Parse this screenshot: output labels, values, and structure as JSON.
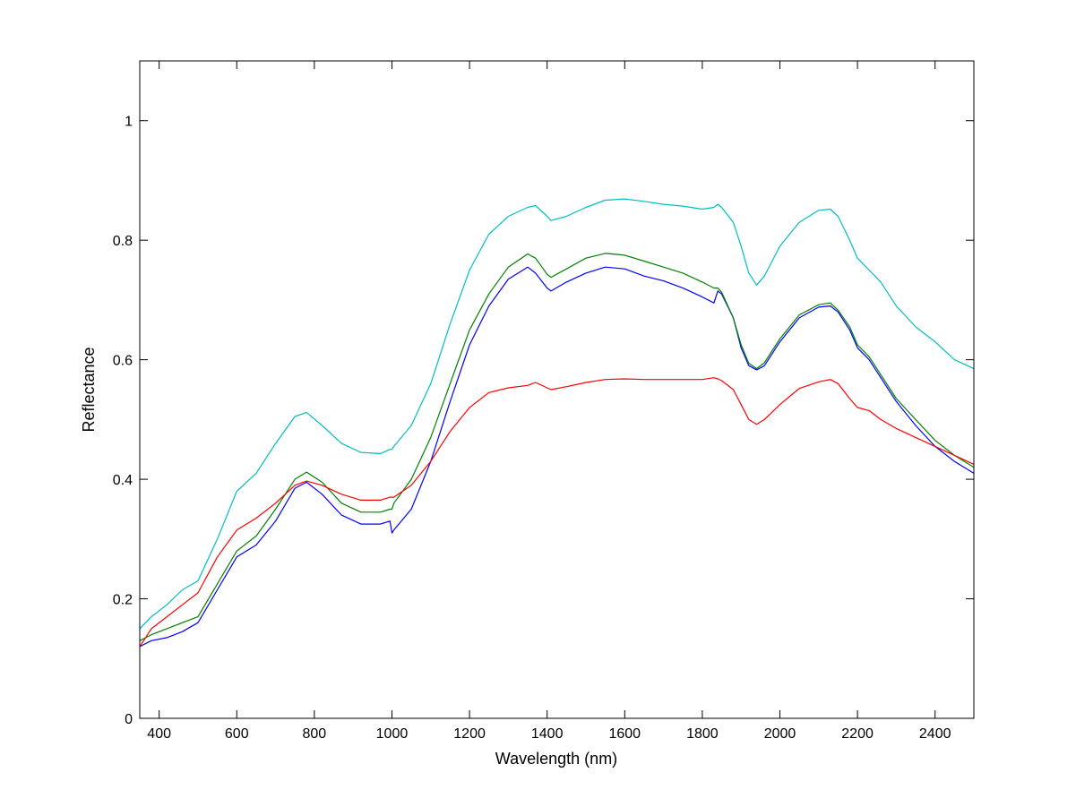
{
  "chart_data": {
    "type": "line",
    "title": "",
    "xlabel": "Wavelength (nm)",
    "ylabel": "Reflectance",
    "xlim": [
      350,
      2500
    ],
    "ylim": [
      0,
      1.1
    ],
    "xticks": [
      400,
      600,
      800,
      1000,
      1200,
      1400,
      1600,
      1800,
      2000,
      2200,
      2400
    ],
    "yticks": [
      0,
      0.2,
      0.4,
      0.6,
      0.8,
      1
    ],
    "ytick_labels": [
      "0",
      "0.2",
      "0.4",
      "0.6",
      "0.8",
      "1"
    ],
    "grid": false,
    "legend": "none",
    "x": [
      350,
      380,
      420,
      460,
      500,
      550,
      600,
      650,
      700,
      750,
      780,
      820,
      870,
      920,
      970,
      995,
      1000,
      1005,
      1050,
      1100,
      1150,
      1200,
      1250,
      1300,
      1350,
      1370,
      1400,
      1410,
      1450,
      1500,
      1550,
      1600,
      1650,
      1700,
      1750,
      1800,
      1830,
      1840,
      1850,
      1880,
      1900,
      1920,
      1940,
      1960,
      2000,
      2050,
      2100,
      2130,
      2150,
      2180,
      2200,
      2230,
      2260,
      2300,
      2350,
      2400,
      2450,
      2500
    ],
    "series": [
      {
        "color": "#0000ff",
        "values": [
          0.12,
          0.13,
          0.135,
          0.145,
          0.16,
          0.215,
          0.27,
          0.29,
          0.33,
          0.385,
          0.395,
          0.375,
          0.34,
          0.325,
          0.325,
          0.33,
          0.31,
          0.315,
          0.35,
          0.43,
          0.53,
          0.625,
          0.69,
          0.735,
          0.755,
          0.745,
          0.72,
          0.715,
          0.73,
          0.745,
          0.755,
          0.752,
          0.74,
          0.732,
          0.72,
          0.705,
          0.695,
          0.715,
          0.71,
          0.67,
          0.62,
          0.59,
          0.583,
          0.59,
          0.63,
          0.67,
          0.688,
          0.69,
          0.68,
          0.65,
          0.62,
          0.6,
          0.57,
          0.53,
          0.49,
          0.455,
          0.43,
          0.41
        ]
      },
      {
        "color": "#008000",
        "values": [
          0.13,
          0.14,
          0.15,
          0.16,
          0.17,
          0.225,
          0.28,
          0.305,
          0.35,
          0.4,
          0.412,
          0.395,
          0.36,
          0.345,
          0.345,
          0.35,
          0.35,
          0.36,
          0.4,
          0.47,
          0.56,
          0.65,
          0.71,
          0.755,
          0.777,
          0.77,
          0.743,
          0.738,
          0.752,
          0.77,
          0.778,
          0.775,
          0.765,
          0.755,
          0.745,
          0.73,
          0.72,
          0.72,
          0.713,
          0.67,
          0.625,
          0.594,
          0.585,
          0.595,
          0.635,
          0.675,
          0.692,
          0.695,
          0.683,
          0.655,
          0.625,
          0.605,
          0.575,
          0.535,
          0.5,
          0.465,
          0.44,
          0.42
        ]
      },
      {
        "color": "#ff0000",
        "values": [
          0.12,
          0.15,
          0.17,
          0.19,
          0.21,
          0.27,
          0.315,
          0.335,
          0.36,
          0.39,
          0.397,
          0.39,
          0.375,
          0.365,
          0.365,
          0.37,
          0.37,
          0.37,
          0.39,
          0.43,
          0.48,
          0.52,
          0.545,
          0.553,
          0.557,
          0.562,
          0.553,
          0.55,
          0.555,
          0.562,
          0.567,
          0.568,
          0.567,
          0.567,
          0.567,
          0.567,
          0.57,
          0.568,
          0.565,
          0.55,
          0.525,
          0.5,
          0.492,
          0.5,
          0.525,
          0.552,
          0.563,
          0.567,
          0.56,
          0.535,
          0.52,
          0.515,
          0.5,
          0.485,
          0.47,
          0.455,
          0.44,
          0.425
        ]
      },
      {
        "color": "#00bfbf",
        "values": [
          0.15,
          0.17,
          0.19,
          0.215,
          0.23,
          0.3,
          0.38,
          0.41,
          0.46,
          0.505,
          0.512,
          0.49,
          0.46,
          0.445,
          0.443,
          0.45,
          0.45,
          0.455,
          0.49,
          0.56,
          0.66,
          0.75,
          0.81,
          0.84,
          0.855,
          0.858,
          0.84,
          0.833,
          0.84,
          0.855,
          0.867,
          0.869,
          0.865,
          0.86,
          0.857,
          0.852,
          0.855,
          0.86,
          0.855,
          0.83,
          0.79,
          0.745,
          0.725,
          0.74,
          0.79,
          0.83,
          0.85,
          0.852,
          0.84,
          0.8,
          0.77,
          0.75,
          0.73,
          0.69,
          0.655,
          0.63,
          0.6,
          0.585
        ]
      }
    ]
  }
}
